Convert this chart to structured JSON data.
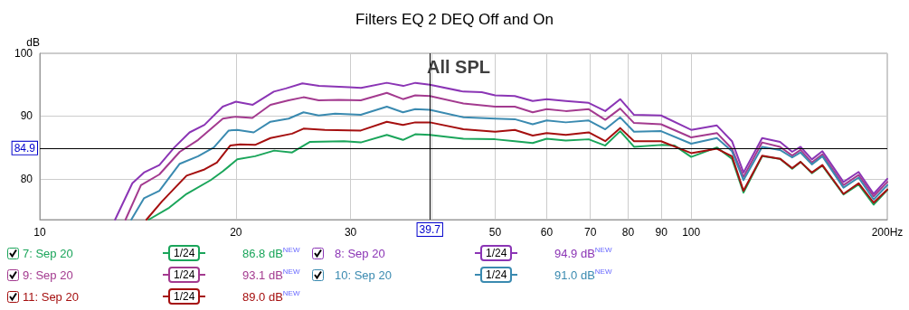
{
  "chart_data": {
    "type": "line",
    "title": "Filters EQ 2 DEQ Off and On",
    "ylabel": "dB",
    "xlim": [
      10,
      200
    ],
    "ylim": [
      73.5,
      100
    ],
    "xticks": [
      10,
      20,
      30,
      {
        "value": 40,
        "label": null
      },
      50,
      60,
      70,
      80,
      90,
      100,
      {
        "value": 200,
        "label": "200Hz"
      }
    ],
    "yticks": [
      80,
      90,
      100
    ],
    "log": "x",
    "grid": true,
    "legend": "bottom",
    "marker": "none",
    "line_style": "solid",
    "ref_lines": [
      {
        "axis": "x",
        "value": 39.7,
        "label": "39.7",
        "color": "#000000"
      },
      {
        "axis": "y",
        "value": 84.9,
        "label": "84.9",
        "color": "#000000"
      }
    ],
    "annotations": [
      "All SPL",
      "1/24",
      "86.8 dB$^{NEW}$",
      "1/24",
      "94.9 dB$^{NEW}$",
      "1/24",
      "93.1 dB$^{NEW}$",
      "1/24",
      "91.0 dB$^{NEW}$",
      "1/24",
      "89.0 dB$^{NEW}$"
    ],
    "series": [
      {
        "name": "7: Sep 20",
        "color": "#1aa55a",
        "x": [
          14.7,
          15.8,
          16.8,
          18.3,
          19.1,
          20.1,
          21.4,
          22.9,
          24.4,
          26.0,
          29.3,
          31.1,
          34.1,
          36.1,
          37.7,
          39.7,
          44.7,
          50,
          53.6,
          57.1,
          60,
          64.2,
          69.6,
          73.8,
          77.8,
          81.7,
          89.9,
          94.3,
          100,
          109.5,
          115.5,
          120.3,
          128.5,
          136.9,
          142.9,
          147.2,
          153.2,
          159,
          171.3,
          180.7,
          190.6,
          200
        ],
        "values": [
          73.5,
          75.4,
          77.6,
          79.8,
          81.2,
          83.1,
          83.6,
          84.5,
          84.2,
          85.9,
          86.0,
          85.8,
          87.0,
          86.2,
          87.1,
          87.0,
          86.4,
          86.3,
          86.0,
          85.7,
          86.4,
          86.1,
          86.3,
          85.3,
          87.6,
          85.1,
          85.4,
          85.3,
          83.5,
          85.0,
          83.2,
          77.8,
          83.6,
          83.2,
          81.6,
          82.7,
          80.9,
          82.1,
          77.5,
          79.1,
          75.9,
          78.2
        ]
      },
      {
        "name": "8: Sep 20",
        "color": "#8b35b5",
        "x": [
          13.05,
          13.87,
          14.45,
          15.26,
          16.09,
          16.98,
          17.9,
          19.09,
          20,
          21.23,
          22.87,
          23.86,
          25.3,
          26.83,
          29.85,
          31.13,
          34.09,
          36.14,
          37.72,
          39.7,
          44.7,
          47.7,
          50,
          53.6,
          57.1,
          60,
          64.2,
          69.6,
          73.8,
          77.8,
          81.7,
          89.9,
          100,
          109.5,
          115.5,
          120.3,
          128.5,
          136.9,
          142.9,
          147.2,
          153.2,
          159,
          171.3,
          180.7,
          190.6,
          200
        ],
        "values": [
          73.5,
          79.3,
          81.0,
          82.2,
          85.0,
          87.4,
          88.6,
          91.5,
          92.3,
          91.8,
          93.9,
          94.4,
          95.2,
          94.8,
          94.6,
          94.5,
          95.3,
          94.8,
          95.3,
          95.0,
          93.9,
          93.8,
          93.3,
          93.2,
          92.4,
          92.7,
          92.4,
          92.1,
          90.8,
          92.7,
          90.2,
          90.1,
          87.8,
          88.5,
          86.0,
          81.0,
          86.5,
          85.9,
          84.3,
          85.1,
          83.1,
          84.4,
          79.5,
          81.1,
          77.6,
          80.0
        ]
      },
      {
        "name": "9: Sep 20",
        "color": "#a33a8f",
        "x": [
          13.54,
          14.3,
          15.26,
          16.4,
          17.5,
          19.1,
          20,
          21.2,
          22.6,
          24.1,
          25.4,
          26.8,
          28.8,
          31.1,
          34.1,
          36.1,
          37.7,
          39.7,
          44.7,
          50,
          53.6,
          57.1,
          60,
          64.2,
          69.6,
          73.8,
          77.8,
          81.7,
          89.9,
          100,
          109.5,
          115.5,
          120.3,
          128.5,
          136.9,
          142.9,
          147.2,
          153.2,
          159,
          171.3,
          180.7,
          190.6,
          200
        ],
        "values": [
          73.5,
          79.0,
          80.7,
          84.3,
          86.2,
          89.6,
          89.9,
          89.7,
          91.8,
          92.5,
          93.0,
          92.5,
          92.6,
          92.5,
          93.7,
          92.7,
          93.3,
          93.2,
          92.0,
          91.5,
          91.5,
          90.6,
          91.1,
          90.8,
          91.1,
          89.4,
          91.2,
          88.9,
          88.7,
          86.6,
          87.3,
          84.8,
          80.3,
          85.8,
          85.1,
          83.7,
          84.6,
          82.6,
          83.9,
          79.0,
          80.6,
          77.2,
          79.5
        ]
      },
      {
        "name": "10: Sep 20",
        "color": "#3a8ab0",
        "x": [
          13.82,
          14.45,
          15.26,
          16.4,
          17.5,
          18.5,
          19.5,
          20.1,
          21.3,
          22.6,
          24.1,
          25.4,
          26.8,
          28.4,
          31.1,
          34.1,
          36.1,
          37.7,
          39.7,
          44.7,
          50,
          53.6,
          57.1,
          60,
          64.2,
          69.6,
          73.8,
          77.8,
          81.7,
          89.9,
          100,
          109.5,
          115.5,
          120.3,
          128.5,
          136.9,
          142.9,
          147.2,
          153.2,
          159,
          171.3,
          180.7,
          190.6,
          200
        ],
        "values": [
          73.5,
          76.9,
          78.1,
          82.4,
          83.6,
          85.0,
          87.7,
          87.8,
          87.4,
          89.1,
          89.6,
          90.6,
          90.1,
          90.4,
          90.2,
          91.5,
          90.6,
          91.1,
          91.0,
          89.8,
          89.6,
          89.5,
          88.7,
          89.3,
          89.0,
          89.3,
          87.9,
          89.8,
          87.5,
          87.6,
          85.6,
          86.5,
          84.4,
          79.8,
          85.1,
          84.6,
          83.4,
          84.2,
          82.3,
          83.6,
          78.6,
          80.2,
          76.7,
          79.0
        ]
      },
      {
        "name": "11: Sep 20",
        "color": "#a50f0f",
        "x": [
          14.58,
          15.4,
          16.8,
          17.9,
          18.7,
          19.6,
          20.3,
          21.4,
          22.6,
          24.4,
          25.4,
          27.4,
          31.1,
          34.1,
          36.1,
          37.7,
          39.7,
          44.7,
          50,
          53.6,
          57.1,
          60,
          64.2,
          69.6,
          73.8,
          77.8,
          81.7,
          89.9,
          100,
          109.5,
          115.5,
          120.3,
          128.5,
          136.9,
          142.9,
          147.2,
          153.2,
          159,
          171.3,
          180.7,
          190.6,
          200
        ],
        "values": [
          73.5,
          76.4,
          80.5,
          81.5,
          82.6,
          85.3,
          85.5,
          85.4,
          86.5,
          87.2,
          88.0,
          87.8,
          87.7,
          89.1,
          88.6,
          89.0,
          89.0,
          87.9,
          87.5,
          87.8,
          86.9,
          87.3,
          87.0,
          87.4,
          86.0,
          88.1,
          86.0,
          86.0,
          84.1,
          84.8,
          83.6,
          78.1,
          83.7,
          83.2,
          81.7,
          82.7,
          81.0,
          82.2,
          77.6,
          79.3,
          76.2,
          78.3
        ]
      }
    ]
  }
}
